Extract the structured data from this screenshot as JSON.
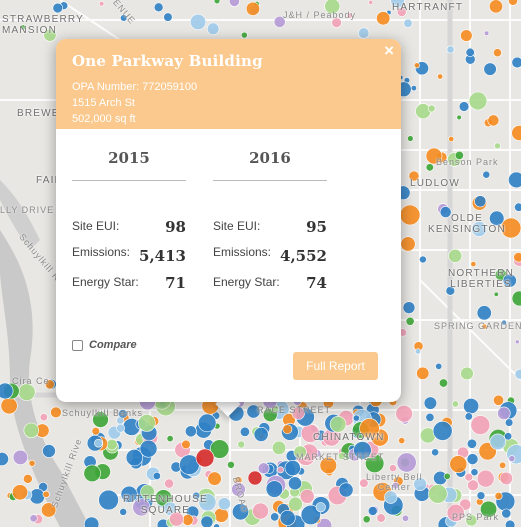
{
  "map": {
    "labels": {
      "strawberry_mansion": "STRAWBERRY\nMANSION",
      "brewerytown": "BREWE",
      "fairmount": "FAIR",
      "kelly_drive": "LLY DRIVE",
      "schuylkill_river": "Schuylkill Rive",
      "cira_centre": "Cira Ce",
      "schuylkill_banks": "Schuylkill Banks",
      "schuylkill_river_2": "Schuylkill Rive",
      "rittenhouse_square": "RITTENHOUSE\nSQUARE",
      "hartranft": "HARTRANFT",
      "benson_park": "Benson Park",
      "ludlow": "LUDLOW",
      "olde_kensington": "OLDE\nKENSINGTON",
      "northern_liberties": "NORTHERN\nLIBERTIES",
      "spring_garden_street": "SPRING GARDEN S",
      "chinatown": "CHINATOWN",
      "market_street": "MARKET STREET",
      "race_street": "RACE STREET",
      "venue": "VENUE",
      "jh_park": "J&H / Peabody",
      "liberty_bell": "Liberty Bell\nCenter",
      "penns_park": "PPS Park",
      "broad": "BROAD"
    }
  },
  "popup": {
    "title": "One Parkway Building",
    "opa": "OPA Number: 772059100",
    "address": "1515 Arch St",
    "sqft": "502,000 sq ft",
    "close": "×",
    "years": [
      {
        "year": "2015",
        "site_eui": "98",
        "emissions": "5,413",
        "energy_star": "71"
      },
      {
        "year": "2016",
        "site_eui": "95",
        "emissions": "4,552",
        "energy_star": "74"
      }
    ],
    "labels": {
      "site_eui": "Site EUI:",
      "emissions": "Emissions:",
      "energy_star": "Energy Star:"
    },
    "compare": "Compare",
    "full_report": "Full Report"
  },
  "colors": {
    "header": "#fbc98d",
    "blue": "#2f80c4",
    "light_blue": "#9ecbea",
    "orange": "#f58b1f",
    "green": "#3da536",
    "light_green": "#a7d98a",
    "red": "#d62a2a",
    "pink": "#f2a1b6",
    "purple": "#b59ad6"
  }
}
